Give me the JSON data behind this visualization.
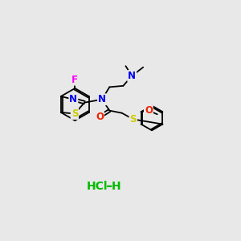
{
  "bg_color": "#e8e8e8",
  "bond_color": "#000000",
  "bond_width": 1.3,
  "atoms": {
    "F": {
      "color": "#ff00ff"
    },
    "N": {
      "color": "#0000ee"
    },
    "S": {
      "color": "#cccc00"
    },
    "O": {
      "color": "#ee2200"
    },
    "C": {
      "color": "#000000"
    }
  },
  "hcl_color": "#00bb00"
}
